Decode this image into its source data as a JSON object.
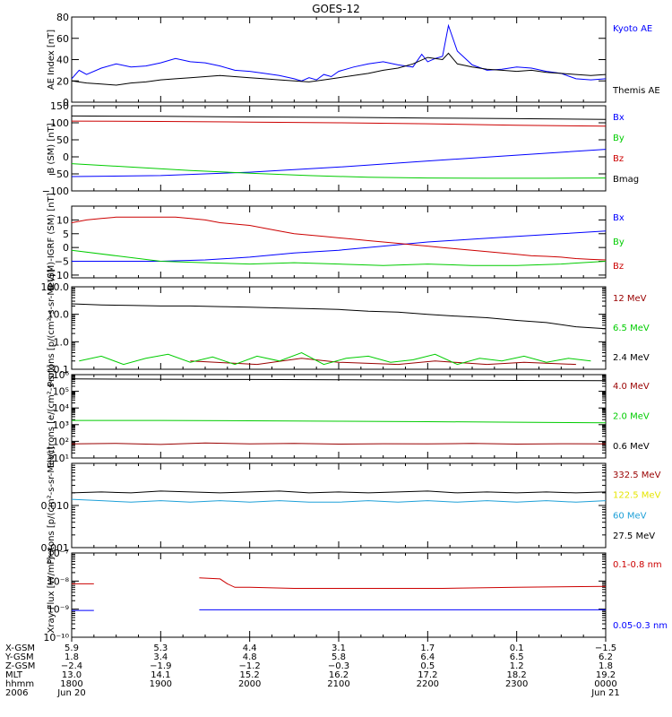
{
  "title": "GOES-12",
  "colors": {
    "black": "#000000",
    "blue": "#0000ff",
    "green": "#00cc00",
    "red": "#cc0000",
    "darkred": "#990000",
    "yellow": "#e6e600",
    "cyan": "#1ea0d8"
  },
  "chart_data": [
    {
      "type": "line",
      "ylabel": "AE Index [nT]",
      "ylim": [
        0,
        80
      ],
      "yticks": [
        {
          "v": 0,
          "t": "0"
        },
        {
          "v": 20,
          "t": "20"
        },
        {
          "v": 40,
          "t": "40"
        },
        {
          "v": 60,
          "t": "60"
        },
        {
          "v": 80,
          "t": "80"
        }
      ],
      "series": [
        {
          "name": "Kyoto AE",
          "color": "blue",
          "x": [
            0,
            0.5,
            1,
            2,
            3,
            4,
            5,
            6,
            7,
            8,
            9,
            10,
            11,
            12,
            13,
            14,
            15,
            15.5,
            16,
            16.5,
            17,
            17.5,
            18,
            19,
            20,
            21,
            22,
            23,
            23.6,
            24,
            24.5,
            25,
            25.4,
            26,
            27,
            28,
            29,
            30,
            31,
            32,
            33,
            34,
            35,
            36
          ],
          "y": [
            22,
            30,
            26,
            32,
            36,
            33,
            34,
            37,
            41,
            38,
            37,
            34,
            30,
            29,
            27,
            25,
            22,
            20,
            23,
            21,
            26,
            24,
            29,
            33,
            36,
            38,
            35,
            33,
            45,
            38,
            41,
            43,
            72,
            48,
            35,
            30,
            31,
            33,
            32,
            29,
            27,
            22,
            21,
            22
          ]
        },
        {
          "name": "Themis AE",
          "color": "black",
          "x": [
            0,
            1,
            2,
            3,
            4,
            5,
            6,
            7,
            8,
            9,
            10,
            11,
            12,
            13,
            14,
            15,
            16,
            17,
            18,
            19,
            20,
            21,
            22,
            23,
            24,
            25,
            25.4,
            26,
            27,
            28,
            29,
            30,
            31,
            32,
            33,
            34,
            35,
            36
          ],
          "y": [
            20,
            18,
            17,
            16,
            18,
            19,
            21,
            22,
            23,
            24,
            25,
            24,
            23,
            22,
            21,
            20,
            19,
            21,
            23,
            25,
            27,
            30,
            32,
            36,
            42,
            40,
            46,
            36,
            33,
            31,
            30,
            29,
            30,
            28,
            27,
            26,
            25,
            26
          ]
        }
      ]
    },
    {
      "type": "line",
      "ylabel": "B (SM) [nT]",
      "ylim": [
        -100,
        150
      ],
      "yticks": [
        {
          "v": -100,
          "t": "−100"
        },
        {
          "v": -50,
          "t": "−50"
        },
        {
          "v": 0,
          "t": "0"
        },
        {
          "v": 50,
          "t": "50"
        },
        {
          "v": 100,
          "t": "100"
        },
        {
          "v": 150,
          "t": "150"
        }
      ],
      "series": [
        {
          "name": "Bx",
          "color": "blue",
          "x": [
            0,
            6,
            12,
            18,
            24,
            30,
            36
          ],
          "y": [
            -58,
            -55,
            -45,
            -30,
            -12,
            5,
            22
          ]
        },
        {
          "name": "By",
          "color": "green",
          "x": [
            0,
            4,
            8,
            12,
            16,
            20,
            24,
            28,
            32,
            36
          ],
          "y": [
            -20,
            -30,
            -40,
            -48,
            -55,
            -60,
            -62,
            -63,
            -63,
            -62
          ]
        },
        {
          "name": "Bz",
          "color": "red",
          "x": [
            0,
            6,
            12,
            18,
            24,
            30,
            36
          ],
          "y": [
            105,
            104,
            102,
            100,
            97,
            93,
            90
          ]
        },
        {
          "name": "Bmag",
          "color": "black",
          "x": [
            0,
            6,
            12,
            18,
            24,
            30,
            36
          ],
          "y": [
            120,
            119,
            117,
            116,
            114,
            112,
            110
          ]
        }
      ]
    },
    {
      "type": "line",
      "ylabel": "B (SM)-IGRF (SM) [nT]",
      "ylim": [
        -11,
        15
      ],
      "yticks": [
        {
          "v": -10,
          "t": "−10"
        },
        {
          "v": -5,
          "t": "−5"
        },
        {
          "v": 0,
          "t": "0"
        },
        {
          "v": 5,
          "t": "5"
        },
        {
          "v": 10,
          "t": "10"
        }
      ],
      "series": [
        {
          "name": "Bx",
          "color": "blue",
          "x": [
            0,
            3,
            6,
            9,
            12,
            15,
            18,
            21,
            24,
            27,
            30,
            33,
            36
          ],
          "y": [
            -5,
            -5,
            -5,
            -4.5,
            -3.5,
            -2,
            -1,
            0.5,
            2,
            3,
            4,
            5,
            6
          ]
        },
        {
          "name": "By",
          "color": "green",
          "x": [
            0,
            3,
            6,
            9,
            12,
            15,
            18,
            21,
            24,
            27,
            30,
            33,
            36
          ],
          "y": [
            -1,
            -3,
            -5,
            -5.5,
            -6,
            -5.5,
            -6,
            -6.5,
            -6,
            -6.5,
            -6.5,
            -6,
            -5
          ]
        },
        {
          "name": "Bz",
          "color": "red",
          "x": [
            0,
            1,
            2,
            3,
            4,
            5,
            6,
            7,
            8,
            9,
            10,
            11,
            12,
            13,
            14,
            15,
            16,
            17,
            18,
            19,
            20,
            21,
            22,
            23,
            24,
            25,
            26,
            27,
            28,
            29,
            30,
            31,
            32,
            33,
            34,
            35,
            36
          ],
          "y": [
            9,
            10,
            10.5,
            11,
            11,
            11,
            11,
            11,
            10.5,
            10,
            9,
            8.5,
            8,
            7,
            6,
            5,
            4.5,
            4,
            3.5,
            3,
            2.5,
            2,
            1.5,
            1,
            0.5,
            0,
            -0.5,
            -1,
            -1.5,
            -2,
            -2.5,
            -3,
            -3.2,
            -3.5,
            -4,
            -4.3,
            -4.5
          ]
        }
      ]
    },
    {
      "type": "line",
      "ylabel": "Protons [p/(cm²-s-sr-MeV)]",
      "yscale": "log",
      "ylim": [
        0.1,
        100
      ],
      "yticks": [
        {
          "v": 0.1,
          "t": "0.1"
        },
        {
          "v": 1,
          "t": "1.0"
        },
        {
          "v": 10,
          "t": "10.0"
        },
        {
          "v": 100,
          "t": "100.0"
        }
      ],
      "series": [
        {
          "name": "12 MeV",
          "color": "darkred",
          "x": [
            8,
            12.5,
            15.5,
            18,
            22,
            24.5,
            28,
            30.5,
            34
          ],
          "y": [
            0.2,
            0.15,
            0.25,
            0.18,
            0.15,
            0.2,
            0.15,
            0.18,
            0.15
          ]
        },
        {
          "name": "6.5 MeV",
          "color": "green",
          "x": [
            0.5,
            2,
            3.5,
            5,
            6.5,
            8,
            9.5,
            11,
            12.5,
            14,
            15.5,
            17,
            18.5,
            20,
            21.5,
            23,
            24.5,
            26,
            27.5,
            29,
            30.5,
            32,
            33.5,
            35
          ],
          "y": [
            0.2,
            0.3,
            0.15,
            0.25,
            0.35,
            0.18,
            0.28,
            0.15,
            0.3,
            0.2,
            0.4,
            0.15,
            0.25,
            0.3,
            0.18,
            0.22,
            0.35,
            0.15,
            0.25,
            0.2,
            0.3,
            0.18,
            0.25,
            0.2
          ]
        },
        {
          "name": "2.4 MeV",
          "color": "black",
          "x": [
            0,
            2,
            4,
            6,
            8,
            10,
            12,
            14,
            16,
            18,
            20,
            22,
            24,
            26,
            28,
            30,
            32,
            34,
            36
          ],
          "y": [
            24,
            22,
            21,
            20,
            20,
            19,
            18,
            17,
            16,
            15,
            13,
            12,
            10,
            8.5,
            7.5,
            6,
            5,
            3.5,
            3
          ]
        }
      ]
    },
    {
      "type": "line",
      "ylabel": "Electrons [e/(cm²-s-sr)]",
      "yscale": "log",
      "ylim": [
        10,
        1000000
      ],
      "yticks": [
        {
          "v": 10,
          "t": "10¹"
        },
        {
          "v": 100,
          "t": "10²"
        },
        {
          "v": 1000,
          "t": "10³"
        },
        {
          "v": 10000,
          "t": "10⁴"
        },
        {
          "v": 100000,
          "t": "10⁵"
        },
        {
          "v": 1000000,
          "t": "10⁶"
        }
      ],
      "series": [
        {
          "name": "4.0 MeV",
          "color": "darkred",
          "x": [
            0,
            3,
            6,
            9,
            12,
            15,
            18,
            21,
            24,
            27,
            30,
            33,
            36
          ],
          "y": [
            70,
            75,
            65,
            80,
            70,
            75,
            68,
            72,
            70,
            74,
            68,
            72,
            70
          ]
        },
        {
          "name": "2.0 MeV",
          "color": "green",
          "x": [
            0,
            6,
            12,
            18,
            24,
            30,
            36
          ],
          "y": [
            1800,
            1800,
            1700,
            1600,
            1500,
            1400,
            1300
          ]
        },
        {
          "name": "0.6 MeV",
          "color": "black",
          "x": [
            0,
            6,
            12,
            18,
            24,
            30,
            36
          ],
          "y": [
            550000,
            530000,
            510000,
            490000,
            470000,
            450000,
            430000
          ]
        }
      ]
    },
    {
      "type": "line",
      "ylabel": "Protons [p/(cm²-s-sr-MeV)]",
      "yscale": "log",
      "ylim": [
        0.001,
        0.1
      ],
      "yticks": [
        {
          "v": 0.001,
          "t": "0.001"
        },
        {
          "v": 0.01,
          "t": "0.010"
        }
      ],
      "series": [
        {
          "name": "332.5 MeV",
          "color": "darkred",
          "x": [],
          "y": []
        },
        {
          "name": "122.5 MeV",
          "color": "yellow",
          "x": [],
          "y": []
        },
        {
          "name": "60 MeV",
          "color": "cyan",
          "x": [
            0,
            2,
            4,
            6,
            8,
            10,
            12,
            14,
            16,
            18,
            20,
            22,
            24,
            26,
            28,
            30,
            32,
            34,
            36
          ],
          "y": [
            0.014,
            0.013,
            0.012,
            0.013,
            0.012,
            0.013,
            0.012,
            0.013,
            0.012,
            0.012,
            0.013,
            0.012,
            0.013,
            0.012,
            0.013,
            0.012,
            0.013,
            0.012,
            0.013
          ]
        },
        {
          "name": "27.5 MeV",
          "color": "black",
          "x": [
            0,
            2,
            4,
            6,
            8,
            10,
            12,
            14,
            16,
            18,
            20,
            22,
            24,
            26,
            28,
            30,
            32,
            34,
            36
          ],
          "y": [
            0.02,
            0.021,
            0.02,
            0.022,
            0.021,
            0.02,
            0.021,
            0.022,
            0.02,
            0.021,
            0.02,
            0.021,
            0.022,
            0.02,
            0.021,
            0.02,
            0.021,
            0.02,
            0.021
          ]
        }
      ]
    },
    {
      "type": "line",
      "ylabel": "Xray Flux [W/m²]",
      "yscale": "log",
      "ylim": [
        1e-10,
        1e-07
      ],
      "yticks": [
        {
          "v": 1e-10,
          "t": "10⁻¹⁰"
        },
        {
          "v": 1e-09,
          "t": "10⁻⁹"
        },
        {
          "v": 1e-08,
          "t": "10⁻⁸"
        },
        {
          "v": 1e-07,
          "t": "10⁻⁷"
        }
      ],
      "series": [
        {
          "name": "0.1-0.8 nm",
          "color": "red",
          "x": [
            0,
            1.5,
            null,
            8.6,
            10,
            10.5,
            11,
            12,
            15,
            20,
            25,
            30,
            36
          ],
          "y": [
            8e-09,
            8e-09,
            null,
            1.3e-08,
            1.2e-08,
            8e-09,
            6e-09,
            6e-09,
            5.5e-09,
            5.5e-09,
            5.5e-09,
            6e-09,
            6.5e-09
          ]
        },
        {
          "name": "0.05-0.3 nm",
          "color": "blue",
          "x": [
            0,
            1.5,
            null,
            8.6,
            36
          ],
          "y": [
            9e-10,
            9e-10,
            null,
            9.5e-10,
            9.5e-10
          ]
        }
      ]
    }
  ],
  "xaxis": {
    "xlim": [
      0,
      36
    ],
    "tick_x": [
      0,
      6,
      12,
      18,
      24,
      30,
      36
    ],
    "minor_x": [
      1.5,
      3,
      4.5,
      7.5,
      9,
      10.5,
      13.5,
      15,
      16.5,
      19.5,
      21,
      22.5,
      25.5,
      27,
      28.5,
      31.5,
      33,
      34.5
    ],
    "rows": [
      {
        "label": "X-GSM",
        "values": [
          "5.9",
          "5.3",
          "4.4",
          "3.1",
          "1.7",
          "0.1",
          "−1.5"
        ]
      },
      {
        "label": "Y-GSM",
        "values": [
          "1.8",
          "3.4",
          "4.8",
          "5.8",
          "6.4",
          "6.5",
          "6.2"
        ]
      },
      {
        "label": "Z-GSM",
        "values": [
          "−2.4",
          "−1.9",
          "−1.2",
          "−0.3",
          "0.5",
          "1.2",
          "1.8"
        ]
      },
      {
        "label": "MLT",
        "values": [
          "13.0",
          "14.1",
          "15.2",
          "16.2",
          "17.2",
          "18.2",
          "19.2"
        ]
      },
      {
        "label": "hhmm",
        "values": [
          "1800",
          "1900",
          "2000",
          "2100",
          "2200",
          "2300",
          "0000"
        ]
      },
      {
        "label": "2006",
        "values": [
          "Jun 20",
          "",
          "",
          "",
          "",
          "",
          "Jun 21"
        ]
      }
    ]
  }
}
